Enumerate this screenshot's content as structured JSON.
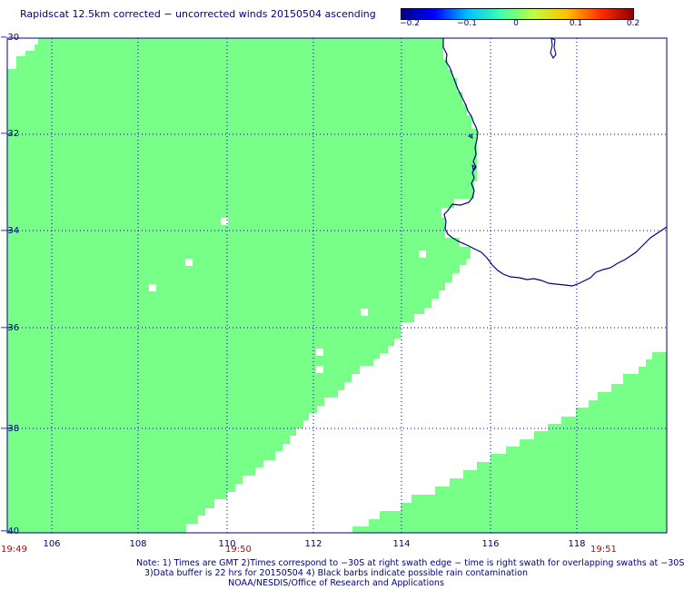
{
  "title": "Rapidscat 12.5km corrected − uncorrected winds 20150504 ascending",
  "colorbar": {
    "ticks": [
      "−0.2",
      "−0.1",
      "0",
      "0.1",
      "0.2"
    ],
    "colors": [
      "#000080",
      "#0000ff",
      "#00c0ff",
      "#40ffb0",
      "#c0ff40",
      "#ffc000",
      "#ff3000",
      "#900000"
    ]
  },
  "map": {
    "lat_range": [
      -40,
      -30
    ],
    "lon_range": [
      105,
      119.8
    ],
    "lat_labels": [
      "−30",
      "−32",
      "−34",
      "−36",
      "−38",
      "−40"
    ],
    "lon_labels": [
      "106",
      "108",
      "110",
      "112",
      "114",
      "116",
      "118"
    ],
    "swath_color": "#77ff88",
    "coast_color": "#000080",
    "grid": "dotted"
  },
  "times": {
    "left": "19:49",
    "mid": "19:50",
    "right": "19:51"
  },
  "notes": {
    "line1": "Note: 1) Times are GMT 2)Times correspond to −30S at right swath edge − time is right swath for overlapping swaths at −30S",
    "line2": "3)Data buffer is 22 hrs for 20150504 4) Black barbs indicate possible rain contamination",
    "line3": "NOAA/NESDIS/Office of Research and Applications"
  }
}
